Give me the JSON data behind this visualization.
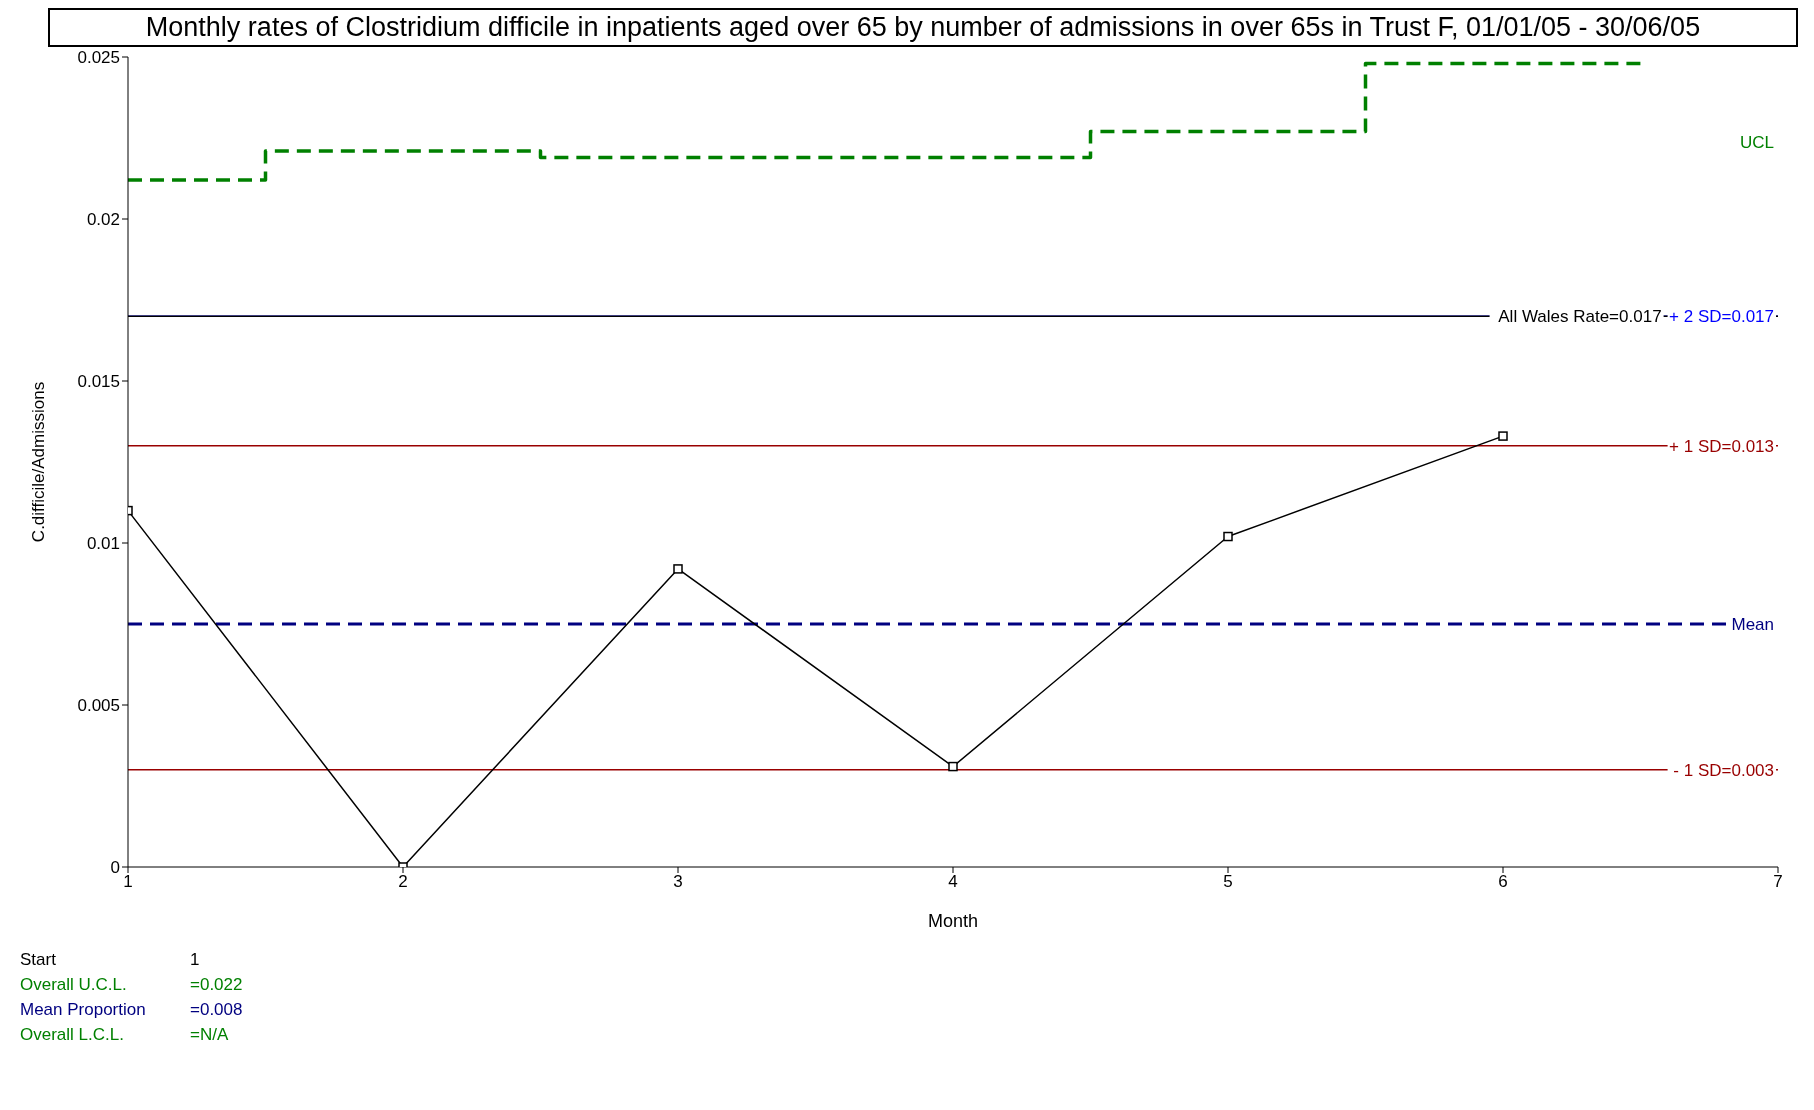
{
  "chart_data": {
    "type": "line",
    "title": "Monthly rates of Clostridium difficile in inpatients aged over 65 by number of admissions in over 65s in Trust F, 01/01/05 - 30/06/05",
    "xlabel": "Month",
    "ylabel": "C.difficile/Admissions",
    "xlim": [
      1,
      7
    ],
    "xticks": [
      1,
      2,
      3,
      4,
      5,
      6,
      7
    ],
    "ylim": [
      0,
      0.025
    ],
    "yticks": [
      0,
      0.005,
      0.01,
      0.015,
      0.02,
      0.025
    ],
    "series": [
      {
        "type": "line",
        "color": "#000000",
        "marker": "square",
        "line_style": "solid",
        "x": [
          1,
          2,
          3,
          4,
          5,
          6
        ],
        "values": [
          0.011,
          0,
          0.0092,
          0.0031,
          0.0102,
          0.0133
        ]
      },
      {
        "type": "step",
        "name": "UCL",
        "color": "#008000",
        "marker": "none",
        "line_style": "dashed",
        "x": [
          1,
          1.5,
          2.5,
          4.5,
          5.5,
          6.5
        ],
        "values": [
          0.0212,
          0.0221,
          0.0219,
          0.0227,
          0.0248,
          0.0248
        ]
      }
    ],
    "ref_lines": [
      {
        "axis": "y",
        "value": 0.017,
        "label": "All Wales Rate=0.017",
        "color": "#000000",
        "line_style": "solid"
      },
      {
        "axis": "y",
        "value": 0.017,
        "label": "+ 2 SD=0.017",
        "color": "#0000ff",
        "line_style": "solid"
      },
      {
        "axis": "y",
        "value": 0.013,
        "label": "+ 1 SD=0.013",
        "color": "#990000",
        "line_style": "solid"
      },
      {
        "axis": "y",
        "value": 0.0075,
        "label": "Mean",
        "color": "#000080",
        "line_style": "dashed"
      },
      {
        "axis": "y",
        "value": 0.003,
        "label": "- 1 SD=0.003",
        "color": "#990000",
        "line_style": "solid"
      }
    ],
    "annotations": [
      "Start 1",
      "Overall U.C.L. =0.022",
      "Mean Proportion =0.008",
      "Overall L.C.L. =N/A"
    ]
  }
}
